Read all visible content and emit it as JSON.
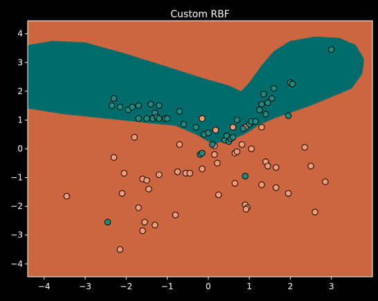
{
  "chart_data": {
    "type": "scatter",
    "title": "Custom RBF",
    "xlabel": "",
    "ylabel": "",
    "xlim": [
      -4.4,
      4.0
    ],
    "ylim": [
      -4.45,
      4.45
    ],
    "xticks": [
      -4,
      -3,
      -2,
      -1,
      0,
      1,
      2,
      3
    ],
    "yticks": [
      -4,
      -3,
      -2,
      -1,
      0,
      1,
      2,
      3,
      4
    ],
    "xtick_labels": [
      "−4",
      "−3",
      "−2",
      "−1",
      "0",
      "1",
      "2",
      "3"
    ],
    "ytick_labels": [
      "−4",
      "−3",
      "−2",
      "−1",
      "0",
      "1",
      "2",
      "3",
      "4"
    ],
    "grid": false,
    "colors": {
      "background": "#000000",
      "region_class0": "#CC6640",
      "region_class1": "#006B6B",
      "point_class0": "#F79C73",
      "point_class1": "#1F8A80",
      "point_edge": "#000000",
      "axes": "#ffffff"
    },
    "decision_region_class1": {
      "description": "teal band predicted as class 1",
      "upper": [
        [
          -4.4,
          3.6
        ],
        [
          -3.8,
          3.75
        ],
        [
          -3.0,
          3.7
        ],
        [
          -2.0,
          3.3
        ],
        [
          -1.0,
          2.85
        ],
        [
          0.0,
          2.4
        ],
        [
          0.5,
          2.2
        ],
        [
          0.8,
          2.0
        ],
        [
          1.0,
          2.3
        ],
        [
          1.3,
          2.9
        ],
        [
          1.6,
          3.4
        ],
        [
          2.0,
          3.75
        ],
        [
          2.6,
          3.9
        ],
        [
          3.2,
          3.85
        ],
        [
          3.6,
          3.6
        ],
        [
          3.8,
          3.1
        ],
        [
          3.75,
          2.6
        ]
      ],
      "lower": [
        [
          3.75,
          2.6
        ],
        [
          3.5,
          2.1
        ],
        [
          3.0,
          1.8
        ],
        [
          2.5,
          1.5
        ],
        [
          2.0,
          1.25
        ],
        [
          1.6,
          1.05
        ],
        [
          1.2,
          0.8
        ],
        [
          1.0,
          0.6
        ],
        [
          0.8,
          0.45
        ],
        [
          0.5,
          0.3
        ],
        [
          0.2,
          0.2
        ],
        [
          0.0,
          0.25
        ],
        [
          -0.3,
          0.5
        ],
        [
          -0.8,
          0.8
        ],
        [
          -1.5,
          0.9
        ],
        [
          -2.5,
          1.05
        ],
        [
          -3.5,
          1.2
        ],
        [
          -4.4,
          1.4
        ]
      ]
    },
    "series": [
      {
        "name": "0",
        "points": [
          [
            -3.45,
            -1.65
          ],
          [
            -2.3,
            -0.3
          ],
          [
            -2.05,
            -0.85
          ],
          [
            -2.1,
            -1.55
          ],
          [
            -1.8,
            0.4
          ],
          [
            -1.6,
            -1.05
          ],
          [
            -1.5,
            -1.1
          ],
          [
            -1.45,
            -1.4
          ],
          [
            -1.2,
            -0.9
          ],
          [
            -1.7,
            -2.05
          ],
          [
            -1.55,
            -2.55
          ],
          [
            -1.6,
            -2.85
          ],
          [
            -1.3,
            -2.65
          ],
          [
            -0.8,
            -2.3
          ],
          [
            -2.15,
            -3.5
          ],
          [
            -0.7,
            0.15
          ],
          [
            -0.75,
            -0.8
          ],
          [
            -0.55,
            -0.85
          ],
          [
            -0.45,
            -0.85
          ],
          [
            -0.15,
            -0.7
          ],
          [
            -0.15,
            1.05
          ],
          [
            0.15,
            0.1
          ],
          [
            0.18,
            0.65
          ],
          [
            0.15,
            -0.2
          ],
          [
            0.22,
            -0.5
          ],
          [
            0.25,
            -1.6
          ],
          [
            0.6,
            0.75
          ],
          [
            0.65,
            -0.15
          ],
          [
            0.7,
            -0.1
          ],
          [
            0.65,
            -1.2
          ],
          [
            0.82,
            0.15
          ],
          [
            0.9,
            0.75
          ],
          [
            1.05,
            0.0
          ],
          [
            1.3,
            0.75
          ],
          [
            1.3,
            -1.25
          ],
          [
            1.4,
            -0.45
          ],
          [
            1.45,
            -0.6
          ],
          [
            1.65,
            -0.65
          ],
          [
            1.65,
            -1.35
          ],
          [
            1.95,
            -1.55
          ],
          [
            2.35,
            0.05
          ],
          [
            2.5,
            -0.6
          ],
          [
            2.85,
            -1.15
          ],
          [
            2.6,
            -2.2
          ],
          [
            0.9,
            -1.95
          ],
          [
            0.95,
            -2.05
          ],
          [
            0.92,
            -2.1
          ]
        ]
      },
      {
        "name": "1",
        "points": [
          [
            -2.35,
            1.5
          ],
          [
            -2.3,
            1.75
          ],
          [
            -2.15,
            1.45
          ],
          [
            -1.95,
            1.35
          ],
          [
            -1.85,
            1.45
          ],
          [
            -1.7,
            1.05
          ],
          [
            -1.7,
            1.5
          ],
          [
            -1.5,
            1.05
          ],
          [
            -1.4,
            1.55
          ],
          [
            -1.35,
            1.05
          ],
          [
            -1.3,
            1.25
          ],
          [
            -1.25,
            1.1
          ],
          [
            -1.2,
            1.05
          ],
          [
            -1.2,
            1.5
          ],
          [
            -1.05,
            1.05
          ],
          [
            -1.0,
            1.05
          ],
          [
            -0.7,
            1.3
          ],
          [
            -0.6,
            0.85
          ],
          [
            -0.3,
            0.75
          ],
          [
            -0.1,
            0.5
          ],
          [
            0.0,
            0.55
          ],
          [
            0.1,
            0.15
          ],
          [
            0.4,
            0.3
          ],
          [
            0.45,
            0.45
          ],
          [
            0.5,
            0.25
          ],
          [
            0.55,
            0.35
          ],
          [
            0.6,
            0.4
          ],
          [
            0.7,
            1.0
          ],
          [
            0.85,
            0.7
          ],
          [
            1.0,
            0.85
          ],
          [
            1.05,
            0.95
          ],
          [
            1.15,
            0.95
          ],
          [
            1.25,
            1.35
          ],
          [
            1.3,
            1.55
          ],
          [
            1.35,
            1.9
          ],
          [
            1.4,
            1.2
          ],
          [
            1.45,
            1.6
          ],
          [
            1.55,
            1.75
          ],
          [
            1.6,
            2.1
          ],
          [
            1.95,
            1.15
          ],
          [
            2.0,
            2.3
          ],
          [
            2.05,
            2.25
          ],
          [
            3.0,
            3.45
          ],
          [
            -0.2,
            -0.2
          ],
          [
            -0.15,
            -0.15
          ],
          [
            0.9,
            -0.95
          ],
          [
            -2.45,
            -2.55
          ]
        ]
      }
    ]
  }
}
